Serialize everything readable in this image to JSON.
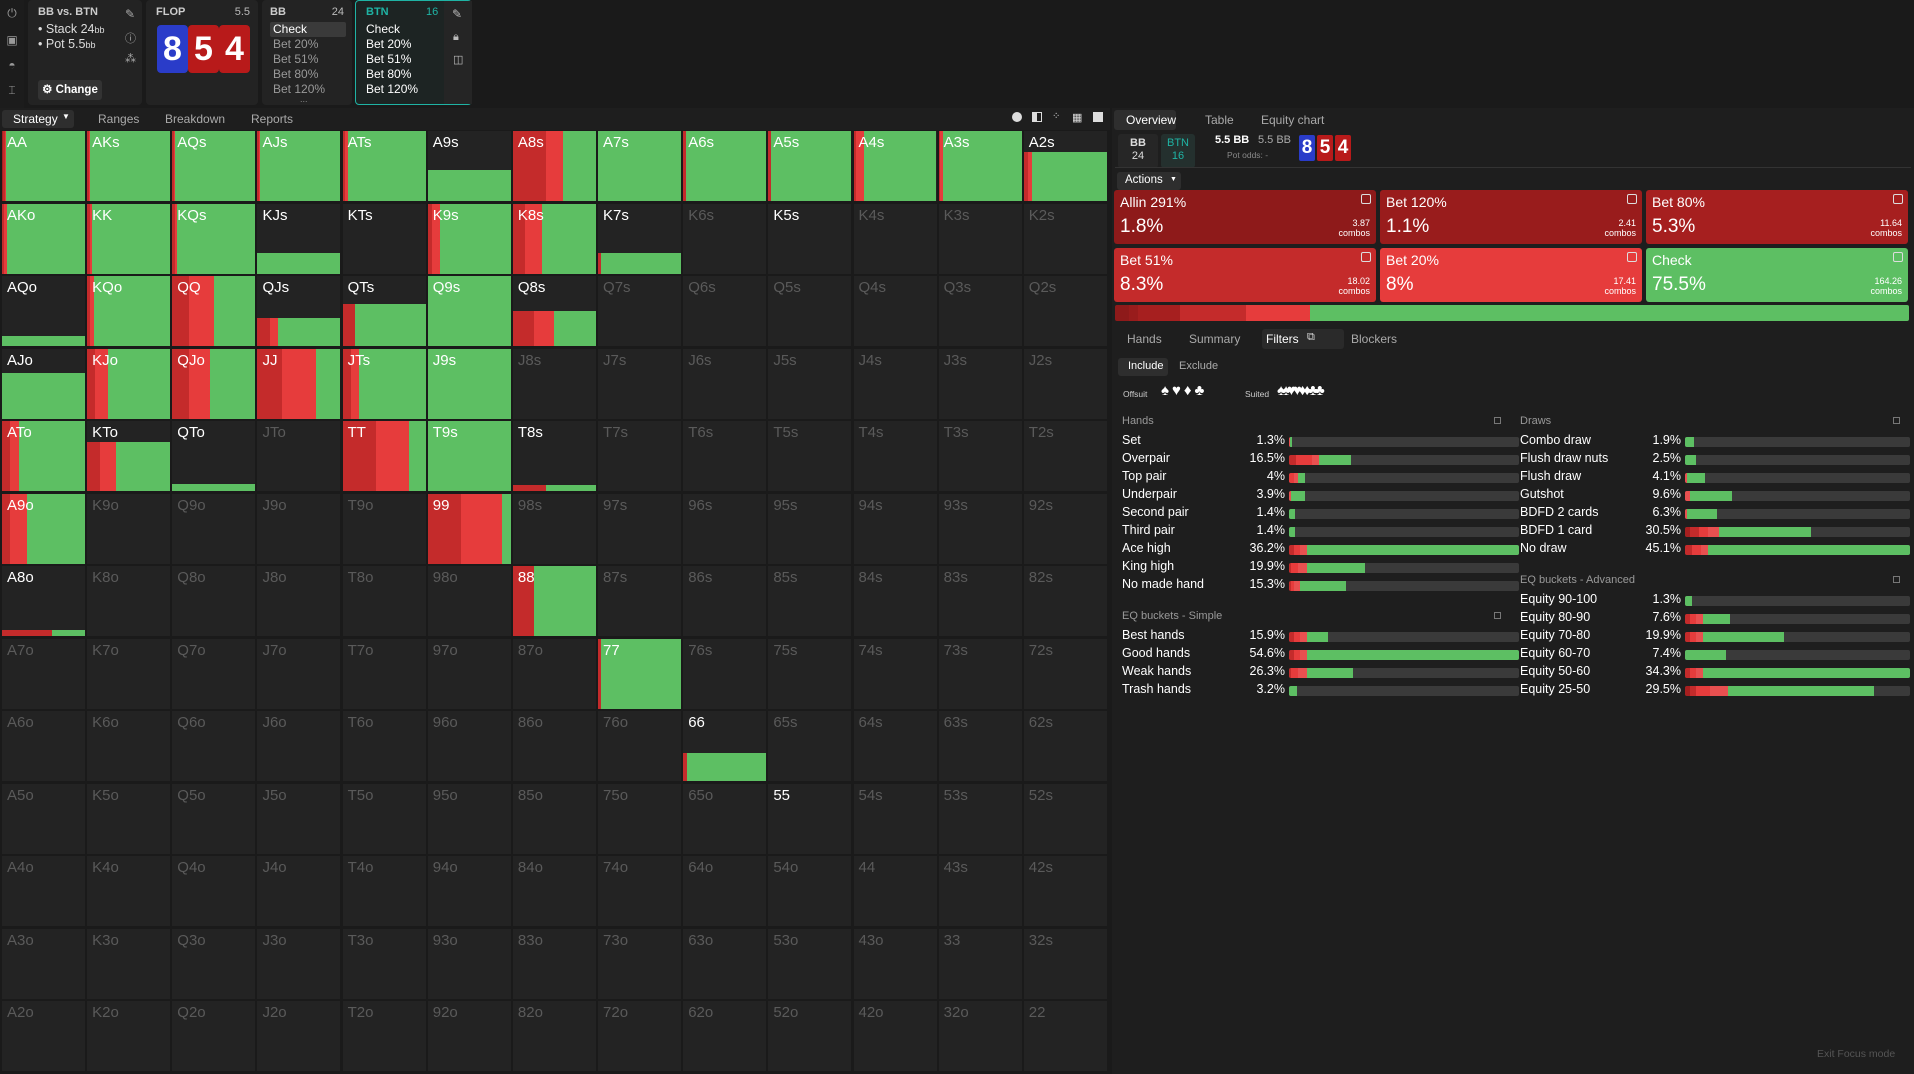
{
  "colors": {
    "check": "#5dbf63",
    "bet_small": "#e63c3c",
    "bet_mid": "#c42b2b",
    "bet_large": "#a61f1f",
    "allin": "#8e1a1a",
    "bg": "#1a1a1a",
    "cell": "#232323",
    "btn_accent": "#1fb3a4"
  },
  "rail": {
    "icons": [
      "power-icon",
      "save-icon",
      "gamepad-icon",
      "text-cursor-icon"
    ]
  },
  "spot": {
    "title": "BB vs. BTN",
    "stack": "Stack 24",
    "stack_unit": "bb",
    "pot": "Pot 5.5",
    "pot_unit": "bb",
    "change_label": "Change",
    "change_icon": "gear-icon"
  },
  "flop": {
    "label": "FLOP",
    "pot": "5.5",
    "cards": [
      {
        "rank": "8",
        "color": "#2a3cc9"
      },
      {
        "rank": "5",
        "color": "#b81a1a"
      },
      {
        "rank": "4",
        "color": "#b81a1a"
      }
    ]
  },
  "bb_panel": {
    "label": "BB",
    "stack": "24",
    "actions": [
      "Check",
      "Bet 20%",
      "Bet 51%",
      "Bet 80%",
      "Bet 120%"
    ],
    "more": "..."
  },
  "btn_panel": {
    "label": "BTN",
    "stack": "16",
    "actions": [
      "Check",
      "Bet 20%",
      "Bet 51%",
      "Bet 80%",
      "Bet 120%"
    ]
  },
  "toolbar": {
    "tabs": [
      "Strategy",
      "Ranges",
      "Breakdown",
      "Reports"
    ],
    "active": "Strategy",
    "view_icons": [
      "circle-icon",
      "half-square-icon",
      "grid-small-icon",
      "grid-icon",
      "square-icon"
    ]
  },
  "grid": {
    "ranks": [
      "A",
      "K",
      "Q",
      "J",
      "T",
      "9",
      "8",
      "7",
      "6",
      "5",
      "4",
      "3",
      "2"
    ],
    "cells": {
      "AA": {
        "h": 1,
        "s": [
          1,
          3,
          1,
          95
        ]
      },
      "AKs": {
        "h": 1,
        "s": [
          0,
          2,
          1,
          97
        ]
      },
      "AQs": {
        "h": 1,
        "s": [
          0,
          2,
          1,
          97
        ]
      },
      "AJs": {
        "h": 1,
        "s": [
          0,
          2,
          1,
          97
        ]
      },
      "ATs": {
        "h": 1,
        "s": [
          0,
          3,
          3,
          94
        ]
      },
      "A9s": {
        "h": 0.45,
        "s": [
          0,
          0,
          0,
          100
        ]
      },
      "A8s": {
        "h": 1,
        "s": [
          0,
          40,
          20,
          40
        ]
      },
      "A7s": {
        "h": 1,
        "s": [
          0,
          0,
          0,
          100
        ]
      },
      "A6s": {
        "h": 1,
        "s": [
          0,
          3,
          0,
          97
        ]
      },
      "A5s": {
        "h": 1,
        "s": [
          0,
          3,
          0,
          97
        ]
      },
      "A4s": {
        "h": 1,
        "s": [
          0,
          3,
          10,
          87
        ]
      },
      "A3s": {
        "h": 1,
        "s": [
          0,
          2,
          3,
          95
        ]
      },
      "A2s": {
        "h": 0.7,
        "s": [
          0,
          5,
          5,
          90
        ]
      },
      "AKo": {
        "h": 1,
        "s": [
          0,
          3,
          3,
          94
        ]
      },
      "KK": {
        "h": 1,
        "s": [
          0,
          3,
          3,
          94
        ]
      },
      "KQs": {
        "h": 1,
        "s": [
          0,
          3,
          3,
          94
        ]
      },
      "KJs": {
        "h": 0.3,
        "s": [
          0,
          0,
          0,
          100
        ]
      },
      "KTs": {
        "h": 0,
        "s": [
          0,
          0,
          0,
          100
        ]
      },
      "K9s": {
        "h": 1,
        "s": [
          0,
          5,
          10,
          85
        ]
      },
      "K8s": {
        "h": 1,
        "s": [
          0,
          15,
          20,
          65
        ]
      },
      "K7s": {
        "h": 0.3,
        "s": [
          0,
          3,
          0,
          97
        ]
      },
      "AQo": {
        "h": 0.15,
        "s": [
          0,
          0,
          0,
          100
        ]
      },
      "KQo": {
        "h": 1,
        "s": [
          0,
          3,
          5,
          92
        ]
      },
      "QQ": {
        "h": 1,
        "s": [
          0,
          20,
          30,
          50
        ]
      },
      "QJs": {
        "h": 0.4,
        "s": [
          0,
          15,
          10,
          75
        ]
      },
      "QTs": {
        "h": 0.6,
        "s": [
          0,
          15,
          0,
          85
        ]
      },
      "Q9s": {
        "h": 1,
        "s": [
          0,
          0,
          0,
          100
        ]
      },
      "Q8s": {
        "h": 0.5,
        "s": [
          0,
          25,
          25,
          50
        ]
      },
      "AJo": {
        "h": 0.65,
        "s": [
          0,
          0,
          0,
          100
        ]
      },
      "KJo": {
        "h": 1,
        "s": [
          0,
          10,
          15,
          75
        ]
      },
      "QJo": {
        "h": 1,
        "s": [
          0,
          20,
          25,
          55
        ]
      },
      "JJ": {
        "h": 1,
        "s": [
          0,
          30,
          40,
          30
        ]
      },
      "JTs": {
        "h": 1,
        "s": [
          0,
          10,
          10,
          80
        ]
      },
      "J9s": {
        "h": 1,
        "s": [
          0,
          0,
          0,
          100
        ]
      },
      "ATo": {
        "h": 1,
        "s": [
          0,
          10,
          10,
          80
        ]
      },
      "KTo": {
        "h": 0.7,
        "s": [
          0,
          15,
          20,
          65
        ]
      },
      "QTo": {
        "h": 0.1,
        "s": [
          0,
          0,
          0,
          100
        ]
      },
      "TT": {
        "h": 1,
        "s": [
          0,
          40,
          40,
          20
        ]
      },
      "T9s": {
        "h": 1,
        "s": [
          0,
          0,
          0,
          100
        ]
      },
      "T8s": {
        "h": 0.08,
        "s": [
          0,
          40,
          0,
          60
        ]
      },
      "A9o": {
        "h": 1,
        "s": [
          0,
          10,
          20,
          70
        ]
      },
      "99": {
        "h": 1,
        "s": [
          0,
          40,
          50,
          10
        ]
      },
      "A8o": {
        "h": 0.08,
        "s": [
          0,
          60,
          0,
          40
        ]
      },
      "88": {
        "h": 1,
        "s": [
          0,
          25,
          0,
          75
        ]
      },
      "77": {
        "h": 1,
        "s": [
          0,
          3,
          0,
          97
        ]
      },
      "66": {
        "h": 0.4,
        "s": [
          0,
          5,
          0,
          95
        ]
      }
    },
    "active_empty": [
      "A9s",
      "KTs",
      "K7s",
      "AQo",
      "QTo",
      "T8s",
      "A8o",
      "66",
      "55"
    ],
    "dim": [
      "K6s",
      "K5s",
      "K4s",
      "K3s",
      "K2s",
      "Q7s",
      "Q6s",
      "Q5s",
      "Q4s",
      "Q3s",
      "Q2s",
      "J8s",
      "J7s",
      "J6s",
      "J5s",
      "J4s",
      "J3s",
      "J2s",
      "JTo",
      "T7s",
      "T6s",
      "T5s",
      "T4s",
      "T3s",
      "T2s",
      "K9o",
      "Q9o",
      "J9o",
      "T9o",
      "98s",
      "97s",
      "96s",
      "95s",
      "94s",
      "93s",
      "92s",
      "K8o",
      "Q8o",
      "J8o",
      "T8o",
      "98o",
      "87s",
      "86s",
      "85s",
      "84s",
      "83s",
      "82s",
      "A7o",
      "K7o",
      "Q7o",
      "J7o",
      "T7o",
      "97o",
      "87o",
      "76s",
      "75s",
      "74s",
      "73s",
      "72s",
      "A6o",
      "K6o",
      "Q6o",
      "J6o",
      "T6o",
      "96o",
      "86o",
      "76o",
      "65s",
      "64s",
      "63s",
      "62s",
      "A5o",
      "K5o",
      "Q5o",
      "J5o",
      "T5o",
      "95o",
      "85o",
      "75o",
      "65o",
      "54s",
      "53s",
      "52s",
      "A4o",
      "K4o",
      "Q4o",
      "J4o",
      "T4o",
      "94o",
      "84o",
      "74o",
      "64o",
      "54o",
      "44",
      "43s",
      "42s",
      "A3o",
      "K3o",
      "Q3o",
      "J3o",
      "T3o",
      "93o",
      "83o",
      "73o",
      "63o",
      "53o",
      "43o",
      "33",
      "32s",
      "A2o",
      "K2o",
      "Q2o",
      "J2o",
      "T2o",
      "92o",
      "82o",
      "72o",
      "62o",
      "52o",
      "42o",
      "32o",
      "22"
    ],
    "bright_text": [
      "K5s"
    ]
  },
  "right": {
    "tabs": [
      "Overview",
      "Table",
      "Equity chart"
    ],
    "active": "Overview",
    "players": [
      {
        "name": "BB",
        "stack": "24"
      },
      {
        "name": "BTN",
        "stack": "16"
      }
    ],
    "pot": "5.5 BB",
    "pot2": "5.5 BB",
    "pot_odds": "Pot odds: -",
    "board": [
      "8",
      "5",
      "4"
    ],
    "actions_label": "Actions",
    "actions": [
      {
        "name": "Allin 291%",
        "pct": "1.8%",
        "combos": "3.87",
        "unit": "combos",
        "color": "#8e1a1a"
      },
      {
        "name": "Bet 120%",
        "pct": "1.1%",
        "combos": "2.41",
        "unit": "combos",
        "color": "#991c1c"
      },
      {
        "name": "Bet 80%",
        "pct": "5.3%",
        "combos": "11.64",
        "unit": "combos",
        "color": "#a61f1f"
      },
      {
        "name": "Bet 51%",
        "pct": "8.3%",
        "combos": "18.02",
        "unit": "combos",
        "color": "#c42b2b"
      },
      {
        "name": "Bet 20%",
        "pct": "8%",
        "combos": "17.41",
        "unit": "combos",
        "color": "#e63c3c"
      },
      {
        "name": "Check",
        "pct": "75.5%",
        "combos": "164.26",
        "unit": "combos",
        "color": "#5dbf63"
      }
    ],
    "subtabs": [
      "Hands",
      "Summary",
      "Filters",
      "Blockers"
    ],
    "subactive": "Filters",
    "include": "Include",
    "exclude": "Exclude",
    "offsuit": "Offsuit",
    "suited": "Suited",
    "hands_title": "Hands",
    "draws_title": "Draws",
    "eq_simple_title": "EQ buckets - Simple",
    "eq_adv_title": "EQ buckets - Advanced",
    "hands": [
      {
        "l": "Set",
        "v": "1.3%",
        "s": [
          0,
          0,
          0,
          0,
          0.3,
          1
        ]
      },
      {
        "l": "Overpair",
        "v": "16.5%",
        "s": [
          0,
          0,
          3,
          7,
          3,
          14
        ]
      },
      {
        "l": "Top pair",
        "v": "4%",
        "s": [
          0,
          0,
          0,
          2,
          2,
          3
        ]
      },
      {
        "l": "Underpair",
        "v": "3.9%",
        "s": [
          0,
          0,
          0,
          0,
          1,
          6
        ]
      },
      {
        "l": "Second pair",
        "v": "1.4%",
        "s": [
          0,
          0,
          0,
          0,
          0,
          2.5
        ]
      },
      {
        "l": "Third pair",
        "v": "1.4%",
        "s": [
          0,
          0,
          0,
          0,
          0,
          2.5
        ]
      },
      {
        "l": "Ace high",
        "v": "36.2%",
        "s": [
          0,
          0,
          2,
          3,
          3,
          92
        ]
      },
      {
        "l": "King high",
        "v": "19.9%",
        "s": [
          0,
          0,
          1,
          3,
          4,
          25
        ]
      },
      {
        "l": "No made hand",
        "v": "15.3%",
        "s": [
          0,
          0,
          1,
          1,
          3,
          20
        ]
      }
    ],
    "eq_simple": [
      {
        "l": "Best hands",
        "v": "15.9%",
        "s": [
          0,
          0,
          2,
          3,
          3,
          9
        ]
      },
      {
        "l": "Good hands",
        "v": "54.6%",
        "s": [
          0,
          0,
          2,
          3,
          3,
          92
        ]
      },
      {
        "l": "Weak hands",
        "v": "26.3%",
        "s": [
          0,
          0,
          1,
          3,
          4,
          20
        ]
      },
      {
        "l": "Trash hands",
        "v": "3.2%",
        "s": [
          0,
          0,
          0,
          0,
          0,
          3.5
        ]
      }
    ],
    "draws": [
      {
        "l": "Combo draw",
        "v": "1.9%",
        "s": [
          0,
          0,
          0,
          0,
          0,
          4
        ]
      },
      {
        "l": "Flush draw nuts",
        "v": "2.5%",
        "s": [
          0,
          0,
          0,
          0,
          0,
          5
        ]
      },
      {
        "l": "Flush draw",
        "v": "4.1%",
        "s": [
          0,
          0,
          0,
          0,
          1,
          8
        ]
      },
      {
        "l": "Gutshot",
        "v": "9.6%",
        "s": [
          0,
          0,
          0,
          0,
          2,
          19
        ]
      },
      {
        "l": "BDFD 2 cards",
        "v": "6.3%",
        "s": [
          0,
          0,
          0,
          0,
          1,
          13
        ]
      },
      {
        "l": "BDFD 1 card",
        "v": "30.5%",
        "s": [
          0,
          2,
          4,
          4,
          5,
          41
        ]
      },
      {
        "l": "No draw",
        "v": "45.1%",
        "s": [
          0,
          0,
          3,
          4,
          3,
          90
        ]
      }
    ],
    "eq_adv": [
      {
        "l": "Equity 90-100",
        "v": "1.3%",
        "s": [
          0,
          0,
          0,
          0,
          0,
          3
        ]
      },
      {
        "l": "Equity 80-90",
        "v": "7.6%",
        "s": [
          0,
          0,
          2,
          3,
          3,
          12
        ]
      },
      {
        "l": "Equity 70-80",
        "v": "19.9%",
        "s": [
          0,
          0,
          2,
          3,
          3,
          36
        ]
      },
      {
        "l": "Equity 60-70",
        "v": "7.4%",
        "s": [
          0,
          0,
          0,
          0,
          0,
          18
        ]
      },
      {
        "l": "Equity 50-60",
        "v": "34.3%",
        "s": [
          0,
          0,
          2,
          3,
          3,
          92
        ]
      },
      {
        "l": "Equity 25-50",
        "v": "29.5%",
        "s": [
          0,
          2,
          3,
          6,
          8,
          65
        ]
      }
    ],
    "exit_focus": "Exit Focus mode"
  }
}
